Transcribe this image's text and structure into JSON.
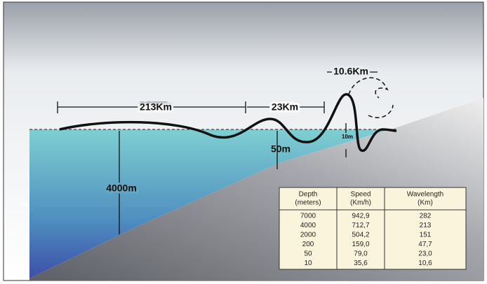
{
  "labels": {
    "distance_long": "213Km",
    "distance_short": "23Km",
    "wavelength_crest": "10.6Km",
    "ocean_depth": "4000m",
    "wave_height_shelf": "50m",
    "wave_height_shore": "10m"
  },
  "table": {
    "header": [
      [
        "Depth",
        "(meters)"
      ],
      [
        "Speed",
        "(Km/h)"
      ],
      [
        "Wavelength",
        "(Km)"
      ]
    ],
    "rows": [
      [
        "7000",
        "942,9",
        "282"
      ],
      [
        "4000",
        "712,7",
        "213"
      ],
      [
        "2000",
        "504,2",
        "151"
      ],
      [
        "200",
        "159,0",
        "47,7"
      ],
      [
        "50",
        "79,0",
        "23,0"
      ],
      [
        "10",
        "35,6",
        "10,6"
      ]
    ]
  }
}
